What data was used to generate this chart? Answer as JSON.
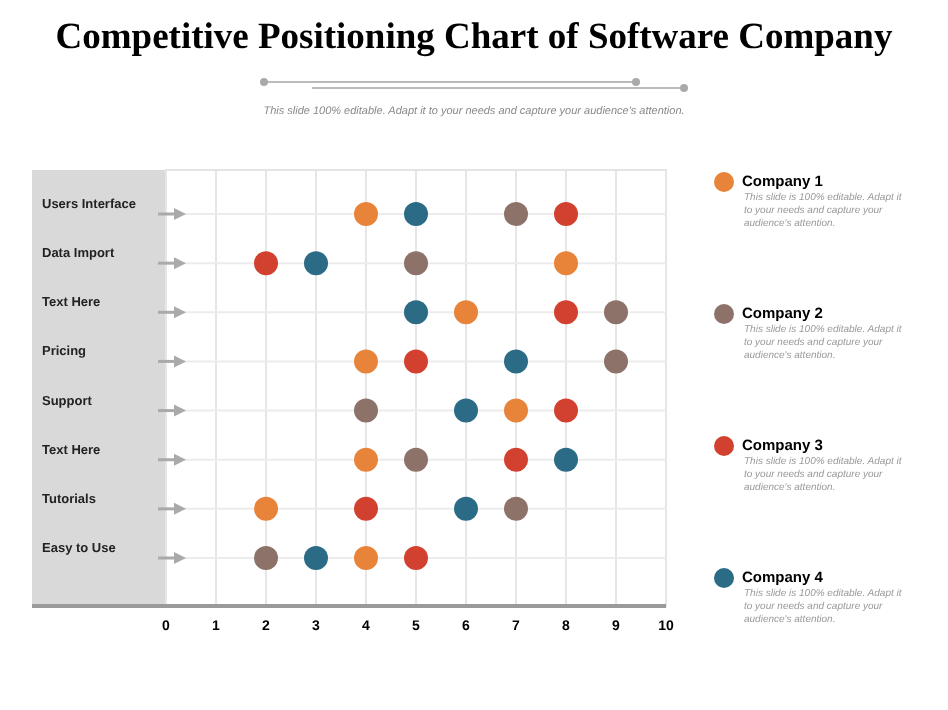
{
  "chart_data": {
    "type": "scatter",
    "title": "Competitive Positioning Chart of Software Company",
    "subtitle": "This slide 100% editable. Adapt it to your needs and capture your audience's attention.",
    "orientation": "horizontal",
    "categories": [
      "Users Interface",
      "Data Import",
      "Text Here",
      "Pricing",
      "Support",
      "Text Here",
      "Tutorials",
      "Easy to Use"
    ],
    "series": [
      {
        "name": "Company 1",
        "color": "#e8843a",
        "values": [
          4,
          8,
          6,
          4,
          7,
          4,
          2,
          4
        ]
      },
      {
        "name": "Company 2",
        "color": "#8c7268",
        "values": [
          7,
          5,
          9,
          9,
          4,
          5,
          7,
          2
        ]
      },
      {
        "name": "Company 3",
        "color": "#d2412f",
        "values": [
          8,
          2,
          8,
          5,
          8,
          7,
          4,
          5
        ]
      },
      {
        "name": "Company 4",
        "color": "#2b6b86",
        "values": [
          5,
          3,
          5,
          7,
          6,
          8,
          6,
          3
        ]
      }
    ],
    "xlim": [
      0,
      10
    ],
    "xticks": [
      0,
      1,
      2,
      3,
      4,
      5,
      6,
      7,
      8,
      9,
      10
    ],
    "grid": true,
    "legend": "right",
    "marker": "circle",
    "annotations": [
      "This slide is 100% editable. Adapt it to your needs and capture your audience's attention.",
      "This slide is 100% editable. Adapt it to your needs and capture your audience's attention.",
      "This slide is 100% editable. Adapt it to your needs and capture your audience's attention.",
      "This slide is 100% editable. Adapt it to your needs and capture your audience's attention."
    ]
  }
}
